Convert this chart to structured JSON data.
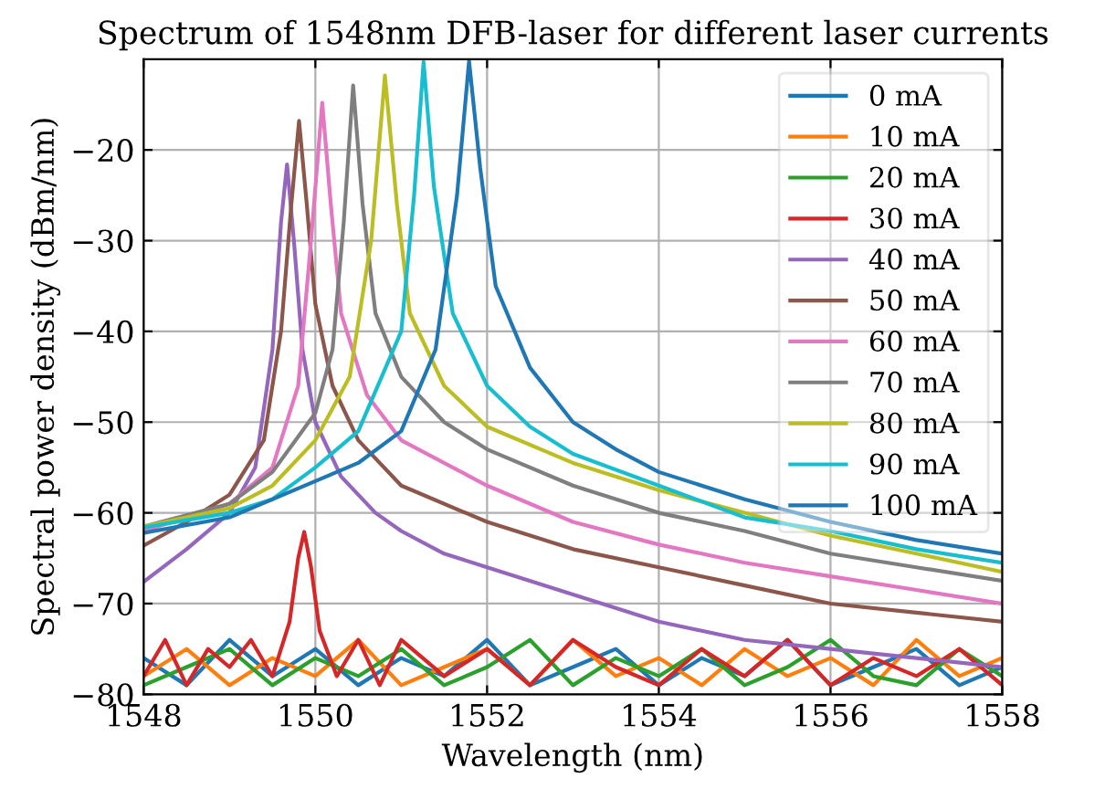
{
  "chart_data": {
    "type": "line",
    "title": "Spectrum of 1548nm DFB-laser for different laser currents",
    "xlabel": "Wavelength (nm)",
    "ylabel": "Spectral power density (dBm/nm)",
    "xlim": [
      1548,
      1558
    ],
    "xticks": [
      1548,
      1550,
      1552,
      1554,
      1556,
      1558
    ],
    "ylim": [
      -80,
      -10
    ],
    "yticks": [
      -80,
      -70,
      -60,
      -50,
      -40,
      -30,
      -20
    ],
    "grid": true,
    "legend": "top right",
    "series": [
      {
        "name": "0 mA",
        "color": "#1f77b4",
        "x": [
          1548,
          1548.5,
          1549,
          1549.5,
          1550,
          1550.5,
          1551,
          1551.5,
          1552,
          1552.5,
          1553,
          1553.5,
          1554,
          1554.5,
          1555,
          1555.5,
          1556,
          1556.5,
          1557,
          1557.5,
          1558
        ],
        "values": [
          -76,
          -79,
          -74,
          -78,
          -75,
          -79,
          -76,
          -78,
          -74,
          -79,
          -77,
          -75,
          -79,
          -76,
          -78,
          -74,
          -79,
          -77,
          -75,
          -79,
          -77
        ]
      },
      {
        "name": "10 mA",
        "color": "#ff7f0e",
        "x": [
          1548,
          1548.5,
          1549,
          1549.5,
          1550,
          1550.5,
          1551,
          1551.5,
          1552,
          1552.5,
          1553,
          1553.5,
          1554,
          1554.5,
          1555,
          1555.5,
          1556,
          1556.5,
          1557,
          1557.5,
          1558
        ],
        "values": [
          -78,
          -75,
          -79,
          -76,
          -78,
          -74,
          -79,
          -77,
          -75,
          -79,
          -74,
          -78,
          -76,
          -79,
          -75,
          -78,
          -76,
          -79,
          -74,
          -78,
          -76
        ]
      },
      {
        "name": "20 mA",
        "color": "#2ca02c",
        "x": [
          1548,
          1548.5,
          1549,
          1549.5,
          1550,
          1550.5,
          1551,
          1551.5,
          1552,
          1552.5,
          1553,
          1553.5,
          1554,
          1554.5,
          1555,
          1555.5,
          1556,
          1556.5,
          1557,
          1557.5,
          1558
        ],
        "values": [
          -79,
          -77,
          -75,
          -79,
          -76,
          -78,
          -75,
          -79,
          -77,
          -74,
          -79,
          -76,
          -78,
          -75,
          -79,
          -77,
          -74,
          -78,
          -79,
          -75,
          -78
        ]
      },
      {
        "name": "30 mA",
        "color": "#d62728",
        "x": [
          1548,
          1548.25,
          1548.5,
          1548.75,
          1549,
          1549.25,
          1549.5,
          1549.7,
          1549.8,
          1549.87,
          1549.95,
          1550.05,
          1550.25,
          1550.5,
          1550.75,
          1551,
          1551.5,
          1552,
          1552.5,
          1553,
          1553.5,
          1554,
          1554.5,
          1555,
          1555.5,
          1556,
          1556.5,
          1557,
          1557.5,
          1558
        ],
        "values": [
          -78,
          -74,
          -79,
          -75,
          -77,
          -74,
          -78,
          -72,
          -65,
          -62.1,
          -66,
          -73,
          -78,
          -74,
          -79,
          -74,
          -78,
          -75,
          -79,
          -74,
          -77,
          -79,
          -75,
          -78,
          -74,
          -79,
          -76,
          -78,
          -75,
          -79
        ]
      },
      {
        "name": "40 mA",
        "color": "#9467bd",
        "x": [
          1548,
          1548.5,
          1549,
          1549.3,
          1549.5,
          1549.6,
          1549.67,
          1549.75,
          1549.85,
          1550,
          1550.3,
          1550.7,
          1551,
          1551.5,
          1552,
          1553,
          1554,
          1555,
          1556,
          1557,
          1558
        ],
        "values": [
          -67.6,
          -64,
          -60,
          -55,
          -42,
          -28,
          -21.6,
          -30,
          -42,
          -50,
          -56,
          -60,
          -62,
          -64.5,
          -66,
          -69,
          -72,
          -74,
          -75,
          -76,
          -77
        ]
      },
      {
        "name": "50 mA",
        "color": "#8c564b",
        "x": [
          1548,
          1548.5,
          1549,
          1549.4,
          1549.6,
          1549.72,
          1549.81,
          1549.9,
          1550,
          1550.2,
          1550.5,
          1551,
          1552,
          1553,
          1554,
          1555,
          1556,
          1557,
          1558
        ],
        "values": [
          -63.6,
          -61,
          -58,
          -52,
          -40,
          -26,
          -16.8,
          -26,
          -37,
          -46,
          -52,
          -57,
          -61,
          -64,
          -66,
          -68,
          -70,
          -71,
          -72
        ]
      },
      {
        "name": "60 mA",
        "color": "#e377c2",
        "x": [
          1548,
          1548.5,
          1549,
          1549.5,
          1549.8,
          1549.95,
          1550.08,
          1550.18,
          1550.3,
          1550.6,
          1551,
          1552,
          1553,
          1554,
          1555,
          1556,
          1557,
          1558
        ],
        "values": [
          -62,
          -60.5,
          -59,
          -55,
          -46,
          -30,
          -14.8,
          -26,
          -38,
          -47,
          -52,
          -57,
          -61,
          -63.5,
          -65.5,
          -67,
          -68.5,
          -70
        ]
      },
      {
        "name": "70 mA",
        "color": "#7f7f7f",
        "x": [
          1548,
          1549,
          1549.5,
          1550,
          1550.2,
          1550.33,
          1550.44,
          1550.55,
          1550.7,
          1551,
          1551.5,
          1552,
          1553,
          1554,
          1555,
          1556,
          1557,
          1558
        ],
        "values": [
          -61.5,
          -59,
          -55.5,
          -49,
          -42,
          -28,
          -12.9,
          -26,
          -38,
          -45,
          -50,
          -53,
          -57,
          -60,
          -62,
          -64.5,
          -66,
          -67.5
        ]
      },
      {
        "name": "80 mA",
        "color": "#bcbd22",
        "x": [
          1548,
          1549,
          1549.5,
          1550,
          1550.4,
          1550.65,
          1550.81,
          1550.95,
          1551.1,
          1551.5,
          1552,
          1553,
          1554,
          1555,
          1556,
          1557,
          1558
        ],
        "values": [
          -61.5,
          -59.5,
          -57,
          -52,
          -45,
          -30,
          -11.8,
          -26,
          -38,
          -46,
          -50.5,
          -54.5,
          -57.5,
          -60,
          -62.5,
          -64.5,
          -66.5
        ]
      },
      {
        "name": "90 mA",
        "color": "#17becf",
        "x": [
          1548,
          1549,
          1549.5,
          1550,
          1550.5,
          1551,
          1551.15,
          1551.26,
          1551.38,
          1551.6,
          1552,
          1552.5,
          1553,
          1554,
          1555,
          1556,
          1557,
          1558
        ],
        "values": [
          -61.6,
          -60,
          -58.5,
          -55,
          -51,
          -40,
          -25,
          -10.3,
          -24,
          -38,
          -46,
          -50.5,
          -53.5,
          -57,
          -60.5,
          -62,
          -64,
          -65.5
        ]
      },
      {
        "name": "100 mA",
        "color": "#1f77b4",
        "x": [
          1548,
          1549,
          1550,
          1550.5,
          1551,
          1551.4,
          1551.65,
          1551.79,
          1551.92,
          1552.1,
          1552.5,
          1553,
          1553.5,
          1554,
          1555,
          1556,
          1557,
          1558
        ],
        "values": [
          -62.2,
          -60.5,
          -56.5,
          -54.5,
          -51,
          -42,
          -25,
          -10.2,
          -22,
          -35,
          -44,
          -50,
          -53,
          -55.5,
          -58.5,
          -61,
          -63,
          -64.5
        ]
      }
    ]
  }
}
